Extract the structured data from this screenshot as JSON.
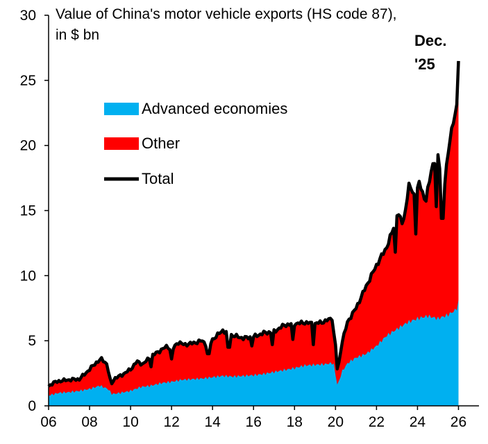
{
  "chart_data": {
    "type": "area",
    "title_lines": [
      "Value of China's motor vehicle exports (HS code 87),",
      "in $ bn"
    ],
    "xlabel": "",
    "ylabel": "",
    "x_range": [
      2006.0,
      2026.0
    ],
    "xlim": [
      2006.0,
      2027.0
    ],
    "ylim": [
      0,
      30
    ],
    "yticks": [
      0,
      5,
      10,
      15,
      20,
      25,
      30
    ],
    "xtick_labels": [
      "06",
      "08",
      "10",
      "12",
      "14",
      "16",
      "18",
      "20",
      "22",
      "24",
      "26"
    ],
    "xtick_years": [
      2006,
      2008,
      2010,
      2012,
      2014,
      2016,
      2018,
      2020,
      2022,
      2024,
      2026
    ],
    "grid": false,
    "legend_position": "upper-left",
    "colors": {
      "advanced": "#00b0f0",
      "other": "#ff0000",
      "total": "#000000"
    },
    "series": [
      {
        "name": "Advanced economies",
        "kind": "area",
        "anchors": [
          [
            2006.0,
            0.8
          ],
          [
            2006.5,
            1.0
          ],
          [
            2007.0,
            1.05
          ],
          [
            2007.5,
            1.15
          ],
          [
            2008.0,
            1.3
          ],
          [
            2008.5,
            1.55
          ],
          [
            2008.9,
            1.3
          ],
          [
            2009.1,
            0.9
          ],
          [
            2009.5,
            1.0
          ],
          [
            2010.0,
            1.15
          ],
          [
            2010.5,
            1.45
          ],
          [
            2011.0,
            1.55
          ],
          [
            2011.5,
            1.75
          ],
          [
            2012.0,
            1.85
          ],
          [
            2012.5,
            2.0
          ],
          [
            2013.0,
            2.05
          ],
          [
            2013.5,
            2.1
          ],
          [
            2014.0,
            2.2
          ],
          [
            2014.5,
            2.3
          ],
          [
            2015.0,
            2.25
          ],
          [
            2015.5,
            2.3
          ],
          [
            2016.0,
            2.35
          ],
          [
            2016.5,
            2.45
          ],
          [
            2017.0,
            2.6
          ],
          [
            2017.5,
            2.75
          ],
          [
            2018.0,
            2.9
          ],
          [
            2018.5,
            3.1
          ],
          [
            2019.0,
            3.15
          ],
          [
            2019.5,
            3.2
          ],
          [
            2019.9,
            3.3
          ],
          [
            2020.1,
            1.5
          ],
          [
            2020.3,
            2.6
          ],
          [
            2020.6,
            3.3
          ],
          [
            2021.0,
            3.7
          ],
          [
            2021.5,
            4.0
          ],
          [
            2022.0,
            4.6
          ],
          [
            2022.5,
            5.4
          ],
          [
            2023.0,
            5.9
          ],
          [
            2023.5,
            6.4
          ],
          [
            2024.0,
            6.7
          ],
          [
            2024.5,
            6.9
          ],
          [
            2025.0,
            6.7
          ],
          [
            2025.5,
            7.0
          ],
          [
            2025.9,
            7.4
          ],
          [
            2026.0,
            8.0
          ]
        ]
      },
      {
        "name": "Other",
        "kind": "area",
        "note": "stacked on Advanced economies"
      },
      {
        "name": "Total",
        "kind": "line",
        "anchors": [
          [
            2006.0,
            1.5
          ],
          [
            2006.2,
            1.75
          ],
          [
            2006.5,
            1.9
          ],
          [
            2007.0,
            2.0
          ],
          [
            2007.5,
            2.05
          ],
          [
            2008.0,
            2.8
          ],
          [
            2008.3,
            3.3
          ],
          [
            2008.6,
            3.6
          ],
          [
            2008.85,
            3.2
          ],
          [
            2009.05,
            1.6
          ],
          [
            2009.2,
            2.1
          ],
          [
            2009.5,
            2.3
          ],
          [
            2010.0,
            2.8
          ],
          [
            2010.3,
            3.4
          ],
          [
            2010.6,
            3.2
          ],
          [
            2011.0,
            3.8
          ],
          [
            2011.5,
            4.3
          ],
          [
            2011.8,
            4.6
          ],
          [
            2012.0,
            4.2
          ],
          [
            2012.3,
            4.9
          ],
          [
            2012.6,
            4.7
          ],
          [
            2013.0,
            4.8
          ],
          [
            2013.5,
            5.0
          ],
          [
            2013.8,
            4.5
          ],
          [
            2014.0,
            5.1
          ],
          [
            2014.5,
            5.8
          ],
          [
            2014.8,
            5.5
          ],
          [
            2015.0,
            5.4
          ],
          [
            2015.5,
            5.2
          ],
          [
            2016.0,
            5.3
          ],
          [
            2016.5,
            5.6
          ],
          [
            2017.0,
            5.7
          ],
          [
            2017.5,
            6.2
          ],
          [
            2018.0,
            6.3
          ],
          [
            2018.5,
            6.4
          ],
          [
            2019.0,
            6.3
          ],
          [
            2019.5,
            6.5
          ],
          [
            2019.9,
            6.8
          ],
          [
            2020.1,
            2.5
          ],
          [
            2020.3,
            4.8
          ],
          [
            2020.6,
            6.5
          ],
          [
            2021.0,
            7.5
          ],
          [
            2021.5,
            9.2
          ],
          [
            2022.0,
            10.8
          ],
          [
            2022.5,
            12.2
          ],
          [
            2022.8,
            13.5
          ],
          [
            2023.0,
            14.8
          ],
          [
            2023.3,
            14.0
          ],
          [
            2023.6,
            17.0
          ],
          [
            2023.9,
            16.0
          ],
          [
            2024.1,
            17.2
          ],
          [
            2024.4,
            15.6
          ],
          [
            2024.7,
            18.4
          ],
          [
            2025.0,
            19.2
          ],
          [
            2025.3,
            16.5
          ],
          [
            2025.5,
            19.6
          ],
          [
            2025.7,
            21.6
          ],
          [
            2025.9,
            22.4
          ],
          [
            2026.0,
            26.8
          ]
        ],
        "dips": [
          [
            2011.0,
            3.0
          ],
          [
            2012.0,
            3.6
          ],
          [
            2013.8,
            4.0
          ],
          [
            2014.8,
            4.5
          ],
          [
            2015.9,
            4.6
          ],
          [
            2016.9,
            4.7
          ],
          [
            2017.9,
            5.1
          ],
          [
            2018.9,
            4.7
          ],
          [
            2019.9,
            5.6
          ],
          [
            2022.9,
            11.8
          ],
          [
            2023.9,
            13.2
          ],
          [
            2024.9,
            15.3
          ],
          [
            2025.2,
            14.4
          ]
        ]
      }
    ],
    "annotations": [
      {
        "text_lines": [
          "Dec.",
          "'25"
        ],
        "x": 2026.0,
        "y": 26.8
      }
    ]
  }
}
